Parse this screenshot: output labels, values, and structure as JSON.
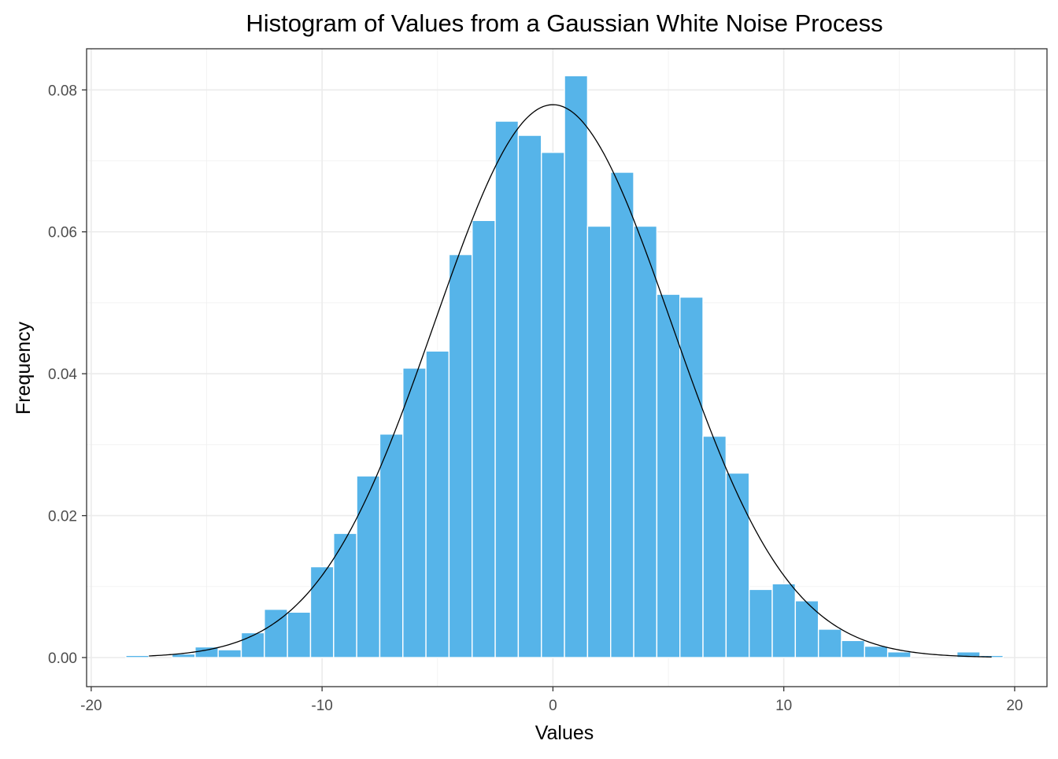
{
  "chart_data": {
    "type": "histogram",
    "title": "Histogram of Values from a Gaussian White Noise Process",
    "xlabel": "Values",
    "ylabel": "Frequency",
    "xlim": [
      -20.2,
      21.4
    ],
    "ylim": [
      -0.0041,
      0.0858
    ],
    "x_ticks": [
      -20,
      -10,
      0,
      10,
      20
    ],
    "x_tick_labels": [
      "-20",
      "-10",
      "0",
      "10",
      "20"
    ],
    "y_ticks": [
      0.0,
      0.02,
      0.04,
      0.06,
      0.08
    ],
    "y_tick_labels": [
      "0.00",
      "0.02",
      "0.04",
      "0.06",
      "0.08"
    ],
    "grid": true,
    "bar_color": "#56B4E9",
    "curve_color": "#000000",
    "bins": {
      "centers": [
        -18,
        -17,
        -16,
        -15,
        -14,
        -13,
        -12,
        -11,
        -10,
        -9,
        -8,
        -7,
        -6,
        -5,
        -4,
        -3,
        -2,
        -1,
        0,
        1,
        2,
        3,
        4,
        5,
        6,
        7,
        8,
        9,
        10,
        11,
        12,
        13,
        14,
        15,
        16,
        17,
        18,
        19
      ],
      "width": 1,
      "density": [
        0.0003,
        0.0,
        0.0005,
        0.0015,
        0.0011,
        0.0035,
        0.0068,
        0.0064,
        0.0128,
        0.0175,
        0.0256,
        0.0315,
        0.0408,
        0.0432,
        0.0568,
        0.0616,
        0.0756,
        0.0736,
        0.0712,
        0.082,
        0.0608,
        0.0684,
        0.0608,
        0.0512,
        0.0508,
        0.0312,
        0.026,
        0.0096,
        0.0104,
        0.008,
        0.004,
        0.0024,
        0.0016,
        0.0008,
        0.0,
        0.0,
        0.0008,
        0.0003
      ]
    },
    "density_curve": {
      "distribution": "normal",
      "mean": 0,
      "sd": 5.12,
      "x_range": [
        -17.5,
        19
      ]
    }
  }
}
